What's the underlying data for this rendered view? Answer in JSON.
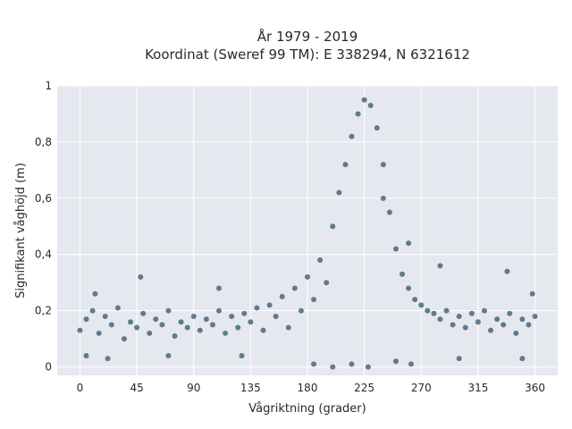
{
  "chart_data": {
    "type": "scatter",
    "title_line1": "År 1979 - 2019",
    "title_line2": "Koordinat (Sweref 99 TM): E 338294, N 6321612",
    "xlabel": "Vågriktning (grader)",
    "ylabel": "Signifikant våghöjd (m)",
    "xlim": [
      -18,
      378
    ],
    "ylim": [
      -0.03,
      1.0
    ],
    "x_ticks": [
      0,
      45,
      90,
      135,
      180,
      225,
      270,
      315,
      360
    ],
    "x_tick_labels": [
      "0",
      "45",
      "90",
      "135",
      "180",
      "225",
      "270",
      "315",
      "360"
    ],
    "y_ticks": [
      0,
      0.2,
      0.4,
      0.6,
      0.8,
      1
    ],
    "y_tick_labels": [
      "0",
      "0,2",
      "0,4",
      "0,6",
      "0,8",
      "1"
    ],
    "grid": true,
    "marker_color": "#30566e",
    "plot_bg": "#e5e8ef",
    "series": [
      {
        "points": [
          [
            0,
            0.13
          ],
          [
            5,
            0.17
          ],
          [
            10,
            0.2
          ],
          [
            15,
            0.12
          ],
          [
            20,
            0.18
          ],
          [
            25,
            0.15
          ],
          [
            30,
            0.21
          ],
          [
            35,
            0.1
          ],
          [
            40,
            0.16
          ],
          [
            45,
            0.14
          ],
          [
            50,
            0.19
          ],
          [
            55,
            0.12
          ],
          [
            60,
            0.17
          ],
          [
            65,
            0.15
          ],
          [
            70,
            0.2
          ],
          [
            75,
            0.11
          ],
          [
            80,
            0.16
          ],
          [
            85,
            0.14
          ],
          [
            90,
            0.18
          ],
          [
            95,
            0.13
          ],
          [
            100,
            0.17
          ],
          [
            105,
            0.15
          ],
          [
            110,
            0.2
          ],
          [
            115,
            0.12
          ],
          [
            120,
            0.18
          ],
          [
            125,
            0.14
          ],
          [
            130,
            0.19
          ],
          [
            135,
            0.16
          ],
          [
            140,
            0.21
          ],
          [
            145,
            0.13
          ],
          [
            150,
            0.22
          ],
          [
            155,
            0.18
          ],
          [
            160,
            0.25
          ],
          [
            165,
            0.14
          ],
          [
            170,
            0.28
          ],
          [
            175,
            0.2
          ],
          [
            180,
            0.32
          ],
          [
            185,
            0.24
          ],
          [
            190,
            0.38
          ],
          [
            195,
            0.3
          ],
          [
            200,
            0.5
          ],
          [
            205,
            0.62
          ],
          [
            210,
            0.72
          ],
          [
            215,
            0.82
          ],
          [
            220,
            0.9
          ],
          [
            225,
            0.95
          ],
          [
            230,
            0.93
          ],
          [
            235,
            0.85
          ],
          [
            240,
            0.72
          ],
          [
            245,
            0.55
          ],
          [
            250,
            0.42
          ],
          [
            255,
            0.33
          ],
          [
            260,
            0.28
          ],
          [
            265,
            0.24
          ],
          [
            270,
            0.22
          ],
          [
            275,
            0.2
          ],
          [
            280,
            0.19
          ],
          [
            285,
            0.17
          ],
          [
            290,
            0.2
          ],
          [
            295,
            0.15
          ],
          [
            300,
            0.18
          ],
          [
            305,
            0.14
          ],
          [
            310,
            0.19
          ],
          [
            315,
            0.16
          ],
          [
            320,
            0.2
          ],
          [
            325,
            0.13
          ],
          [
            330,
            0.17
          ],
          [
            335,
            0.15
          ],
          [
            340,
            0.19
          ],
          [
            345,
            0.12
          ],
          [
            350,
            0.17
          ],
          [
            355,
            0.15
          ],
          [
            360,
            0.18
          ],
          [
            12,
            0.26
          ],
          [
            22,
            0.03
          ],
          [
            48,
            0.32
          ],
          [
            70,
            0.04
          ],
          [
            110,
            0.28
          ],
          [
            128,
            0.04
          ],
          [
            185,
            0.01
          ],
          [
            200,
            0.0
          ],
          [
            215,
            0.01
          ],
          [
            228,
            0.0
          ],
          [
            250,
            0.02
          ],
          [
            262,
            0.01
          ],
          [
            285,
            0.36
          ],
          [
            300,
            0.03
          ],
          [
            338,
            0.34
          ],
          [
            350,
            0.03
          ],
          [
            358,
            0.26
          ],
          [
            5,
            0.04
          ],
          [
            260,
            0.44
          ],
          [
            240,
            0.6
          ]
        ]
      }
    ]
  }
}
